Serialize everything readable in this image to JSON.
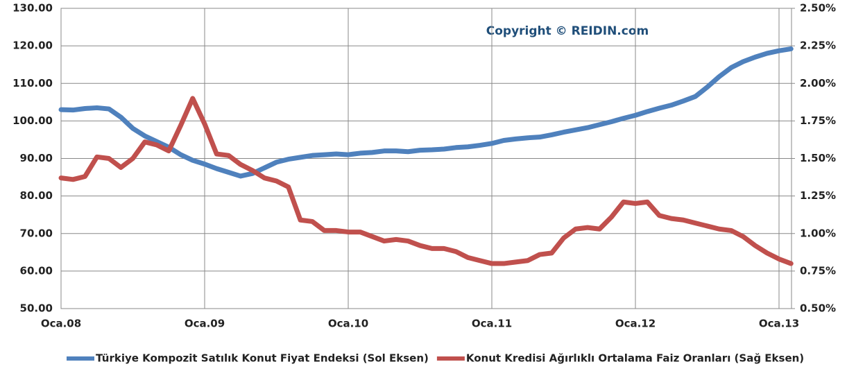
{
  "chart_data": {
    "type": "line",
    "annotation": "Copyright © REIDIN.com",
    "categories": [
      "Oca.08",
      null,
      null,
      null,
      null,
      null,
      null,
      null,
      null,
      null,
      null,
      null,
      "Oca.09",
      null,
      null,
      null,
      null,
      null,
      null,
      null,
      null,
      null,
      null,
      null,
      "Oca.10",
      null,
      null,
      null,
      null,
      null,
      null,
      null,
      null,
      null,
      null,
      null,
      "Oca.11",
      null,
      null,
      null,
      null,
      null,
      null,
      null,
      null,
      null,
      null,
      null,
      "Oca.12",
      null,
      null,
      null,
      null,
      null,
      null,
      null,
      null,
      null,
      null,
      null,
      "Oca.13",
      null
    ],
    "series": [
      {
        "name": "Türkiye Kompozit Satılık Konut Fiyat Endeksi (Sol Eksen)",
        "color": "#4f81bd",
        "values": [
          103,
          102.9,
          103.3,
          103.5,
          103.2,
          101,
          98,
          96,
          94.5,
          93,
          91,
          89.5,
          88.5,
          87.3,
          86.3,
          85.3,
          86,
          87.5,
          89,
          89.8,
          90.3,
          90.8,
          91,
          91.2,
          91,
          91.4,
          91.6,
          92,
          92,
          91.8,
          92.2,
          92.3,
          92.5,
          92.9,
          93.1,
          93.5,
          94,
          94.8,
          95.2,
          95.5,
          95.7,
          96.3,
          97,
          97.6,
          98.2,
          99,
          99.8,
          100.7,
          101.5,
          102.5,
          103.4,
          104.2,
          105.3,
          106.5,
          109,
          111.8,
          114.2,
          115.8,
          117,
          118,
          118.7,
          119.2
        ]
      },
      {
        "name": "Konut Kredisi Ağırlıklı Ortalama Faiz Oranları (Sağ Eksen)",
        "color": "#c0504d",
        "axis": "y2",
        "values": [
          1.37,
          1.36,
          1.38,
          1.51,
          1.5,
          1.44,
          1.5,
          1.61,
          1.59,
          1.55,
          1.72,
          1.9,
          1.73,
          1.53,
          1.52,
          1.46,
          1.42,
          1.37,
          1.35,
          1.31,
          1.09,
          1.08,
          1.02,
          1.02,
          1.01,
          1.01,
          0.98,
          0.95,
          0.96,
          0.95,
          0.92,
          0.9,
          0.9,
          0.88,
          0.84,
          0.82,
          0.8,
          0.8,
          0.81,
          0.82,
          0.86,
          0.87,
          0.97,
          1.03,
          1.04,
          1.03,
          1.11,
          1.21,
          1.2,
          1.21,
          1.12,
          1.1,
          1.09,
          1.07,
          1.05,
          1.03,
          1.02,
          0.98,
          0.92,
          0.87,
          0.83,
          0.8
        ]
      }
    ],
    "ylim": [
      50,
      130
    ],
    "yticks": [
      {
        "value": 50,
        "label": "50.00"
      },
      {
        "value": 60,
        "label": "60.00"
      },
      {
        "value": 70,
        "label": "70.00"
      },
      {
        "value": 80,
        "label": "80.00"
      },
      {
        "value": 90,
        "label": "90.00"
      },
      {
        "value": 100,
        "label": "100.00"
      },
      {
        "value": 110,
        "label": "110.00"
      },
      {
        "value": 120,
        "label": "120.00"
      },
      {
        "value": 130,
        "label": "130.00"
      }
    ],
    "y2lim": [
      0.5,
      2.5
    ],
    "y2ticks": [
      {
        "value": 0.5,
        "label": "0.50%"
      },
      {
        "value": 0.75,
        "label": "0.75%"
      },
      {
        "value": 1,
        "label": "1.00%"
      },
      {
        "value": 1.25,
        "label": "1.25%"
      },
      {
        "value": 1.5,
        "label": "1.50%"
      },
      {
        "value": 1.75,
        "label": "1.75%"
      },
      {
        "value": 2,
        "label": "2.00%"
      },
      {
        "value": 2.25,
        "label": "2.25%"
      },
      {
        "value": 2.5,
        "label": "2.50%"
      }
    ],
    "grid": true,
    "legend": "bottom"
  }
}
